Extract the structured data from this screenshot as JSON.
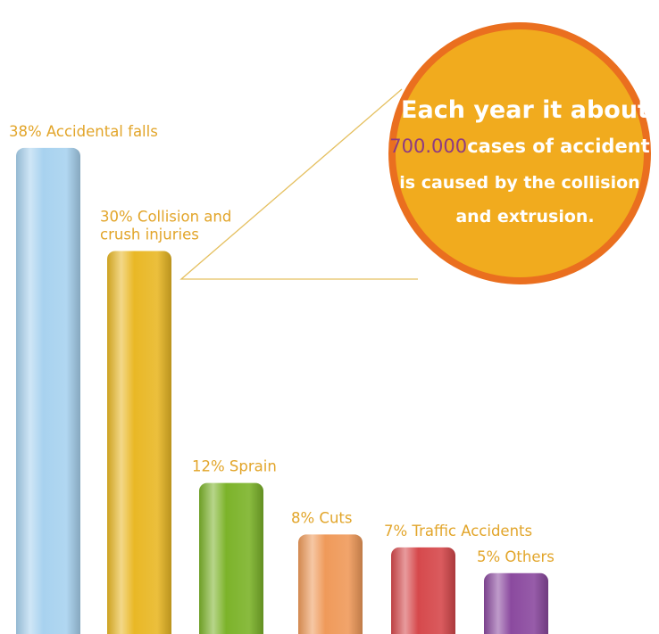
{
  "chart_data": {
    "type": "bar",
    "categories": [
      "Accidental falls",
      "Collision and crush injuries",
      "Sprain",
      "Cuts",
      "Traffic Accidents",
      "Others"
    ],
    "values": [
      38,
      30,
      12,
      8,
      7,
      5
    ],
    "labels": [
      [
        "38% Accidental falls"
      ],
      [
        "30%  Collision and",
        "crush injuries"
      ],
      [
        "12% Sprain"
      ],
      [
        "8% Cuts"
      ],
      [
        "7% Traffic Accidents"
      ],
      [
        "5% Others"
      ]
    ],
    "bar_colors": [
      "#a8d2ef",
      "#e9b826",
      "#7cb32a",
      "#ef9a5a",
      "#d6494c",
      "#8b4a9f"
    ],
    "grid": false,
    "legend": "none"
  },
  "callout": {
    "line1": "Each year it about",
    "highlight": "700.000",
    "line2_rest": "cases of  accident",
    "line3": "is caused by the collision",
    "line4": "and extrusion.",
    "circle_color": "#f1ab1e",
    "ring_color": "#ea6f1f",
    "highlight_color": "#8e3a82",
    "pointer_color": "#e5c060"
  }
}
